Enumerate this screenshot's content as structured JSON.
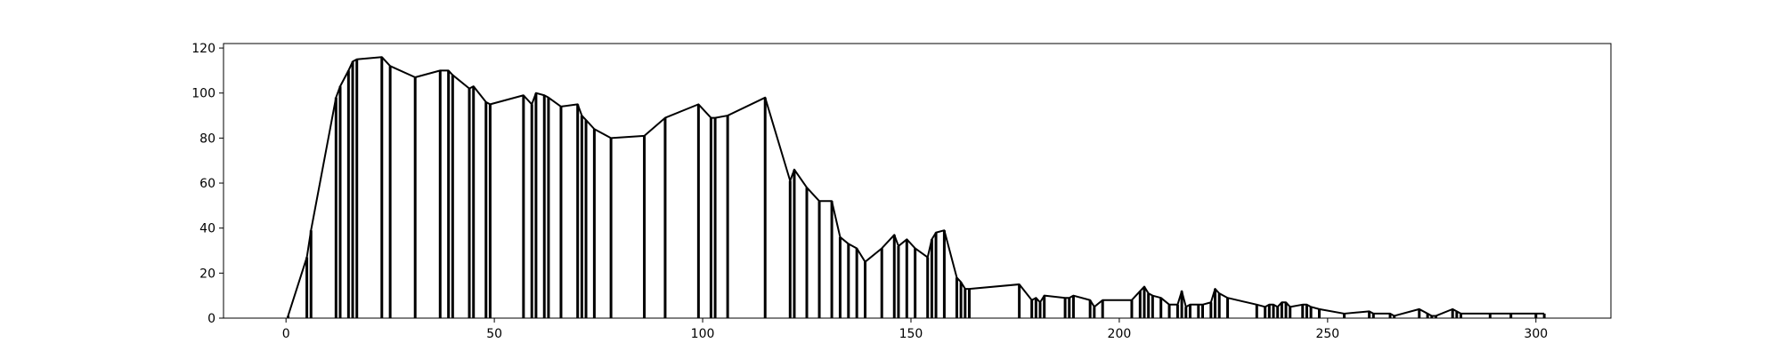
{
  "chart_data": {
    "type": "line",
    "title": "",
    "xlabel": "",
    "ylabel": "",
    "xlim": [
      -15,
      318
    ],
    "ylim": [
      0,
      122
    ],
    "x_ticks": [
      0,
      50,
      100,
      150,
      200,
      250,
      300
    ],
    "y_ticks": [
      0,
      20,
      40,
      60,
      80,
      100,
      120
    ],
    "grid": false,
    "line_color": "#000000",
    "series": [
      {
        "x": [
          0.5,
          5,
          6,
          12,
          13,
          15,
          16,
          17,
          23,
          25,
          31,
          37,
          39,
          40,
          44,
          45,
          48,
          49,
          57,
          59,
          60,
          62,
          63,
          66,
          70,
          71,
          72,
          74,
          78,
          86,
          91,
          99,
          102,
          103,
          106,
          115,
          121,
          122,
          125,
          128,
          131,
          133,
          135,
          137,
          139,
          143,
          146,
          147,
          149,
          151,
          154,
          155,
          156,
          158,
          161,
          162,
          163,
          164,
          176,
          179,
          180,
          181,
          182,
          187,
          188,
          189,
          193,
          194,
          196,
          203,
          205,
          206,
          207,
          208,
          210,
          212,
          214,
          215,
          216,
          217,
          219,
          220,
          222,
          223,
          224,
          226,
          233,
          235,
          236,
          237,
          238,
          239,
          240,
          241,
          244,
          245,
          246,
          248,
          254,
          260,
          261,
          265,
          266,
          272,
          274,
          275,
          276,
          280,
          281,
          282,
          289,
          294,
          300,
          302
        ],
        "y": [
          1,
          27,
          39,
          98,
          103,
          110,
          114,
          115,
          116,
          112,
          107,
          110,
          110,
          108,
          102,
          103,
          96,
          95,
          99,
          95,
          100,
          99,
          98,
          94,
          95,
          90,
          88,
          84,
          80,
          81,
          89,
          95,
          89,
          89,
          90,
          98,
          61,
          66,
          58,
          52,
          52,
          36,
          33,
          31,
          25,
          31,
          37,
          32,
          35,
          31,
          27,
          35,
          38,
          39,
          18,
          16,
          13,
          13,
          15,
          8,
          9,
          7,
          10,
          9,
          9,
          10,
          8,
          5,
          8,
          8,
          12,
          14,
          11,
          10,
          9,
          6,
          6,
          12,
          5,
          6,
          6,
          6,
          7,
          13,
          11,
          9,
          6,
          5,
          6,
          6,
          5,
          7,
          7,
          5,
          6,
          6,
          5,
          4,
          2,
          3,
          2,
          2,
          1,
          4,
          2,
          1,
          1,
          4,
          3,
          2,
          2,
          2,
          2,
          2
        ]
      }
    ]
  }
}
